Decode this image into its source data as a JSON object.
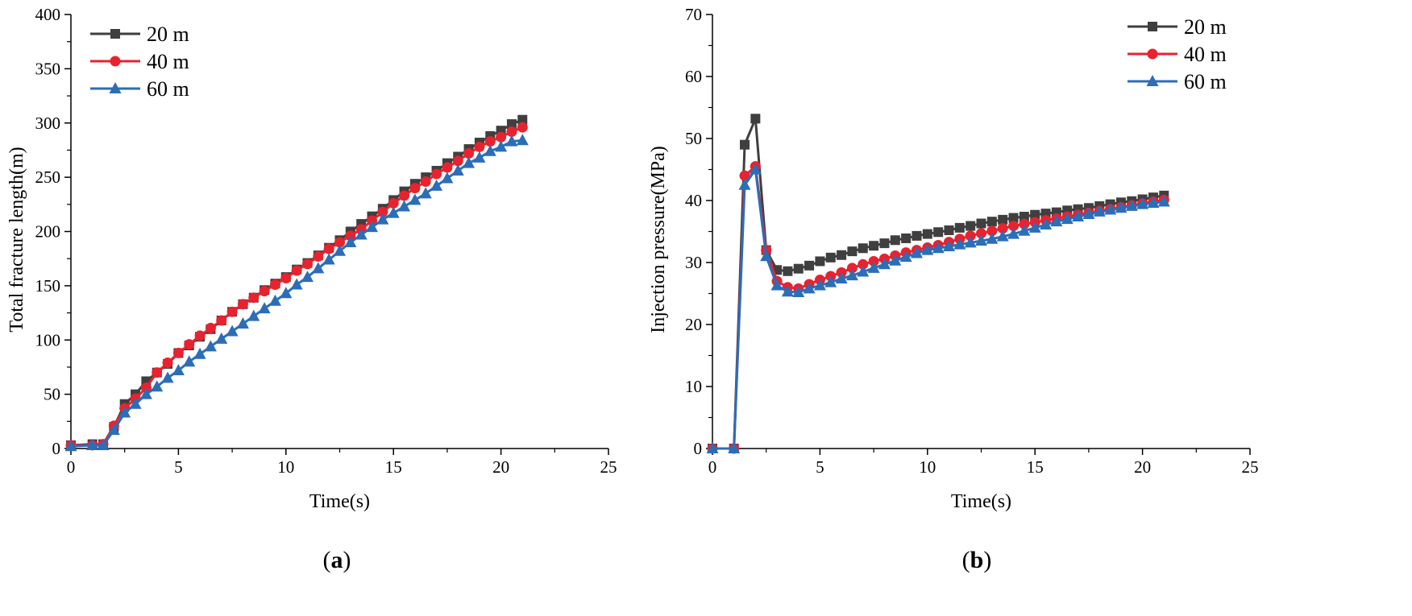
{
  "chart_data": [
    {
      "type": "line",
      "panel_label": "a",
      "title": "",
      "xlabel": "Time(s)",
      "ylabel": "Total fracture length(m)",
      "xlim": [
        0,
        25
      ],
      "ylim": [
        0,
        400
      ],
      "xticks": [
        0,
        5,
        10,
        15,
        20,
        25
      ],
      "yticks": [
        0,
        50,
        100,
        150,
        200,
        250,
        300,
        350,
        400
      ],
      "grid": false,
      "legend_position": "top-left",
      "x": [
        0,
        1,
        1.5,
        2,
        2.5,
        3,
        3.5,
        4,
        4.5,
        5,
        5.5,
        6,
        6.5,
        7,
        7.5,
        8,
        8.5,
        9,
        9.5,
        10,
        10.5,
        11,
        11.5,
        12,
        12.5,
        13,
        13.5,
        14,
        14.5,
        15,
        15.5,
        16,
        16.5,
        17,
        17.5,
        18,
        18.5,
        19,
        19.5,
        20,
        20.5,
        21
      ],
      "series": [
        {
          "name": "20 m",
          "color": "#3f3f3f",
          "marker": "square",
          "values": [
            3,
            4,
            4,
            20,
            41,
            50,
            62,
            70,
            78,
            88,
            95,
            103,
            110,
            118,
            126,
            133,
            139,
            146,
            152,
            158,
            165,
            171,
            178,
            185,
            192,
            200,
            207,
            214,
            221,
            229,
            237,
            244,
            250,
            256,
            263,
            269,
            276,
            282,
            288,
            293,
            299,
            303
          ]
        },
        {
          "name": "40 m",
          "color": "#e8222f",
          "marker": "circle",
          "values": [
            3,
            3,
            4,
            21,
            37,
            46,
            56,
            70,
            79,
            88,
            96,
            104,
            111,
            118,
            126,
            133,
            139,
            145,
            151,
            157,
            164,
            170,
            177,
            184,
            190,
            196,
            202,
            210,
            218,
            226,
            233,
            240,
            246,
            253,
            259,
            265,
            272,
            278,
            283,
            287,
            292,
            296
          ]
        },
        {
          "name": "60 m",
          "color": "#2c6db8",
          "marker": "triangle",
          "values": [
            2,
            3,
            3,
            17,
            33,
            41,
            50,
            57,
            65,
            72,
            80,
            87,
            94,
            101,
            108,
            115,
            122,
            129,
            136,
            143,
            151,
            158,
            166,
            174,
            182,
            190,
            197,
            204,
            211,
            217,
            223,
            229,
            235,
            242,
            249,
            256,
            263,
            268,
            274,
            278,
            283,
            284
          ]
        }
      ]
    },
    {
      "type": "line",
      "panel_label": "b",
      "title": "",
      "xlabel": "Time(s)",
      "ylabel": "Injection pressure(MPa)",
      "xlim": [
        0,
        25
      ],
      "ylim": [
        0,
        70
      ],
      "xticks": [
        0,
        5,
        10,
        15,
        20,
        25
      ],
      "yticks": [
        0,
        10,
        20,
        30,
        40,
        50,
        60,
        70
      ],
      "grid": false,
      "legend_position": "top-right",
      "x": [
        0,
        1,
        1.5,
        2,
        2.5,
        3,
        3.5,
        4,
        4.5,
        5,
        5.5,
        6,
        6.5,
        7,
        7.5,
        8,
        8.5,
        9,
        9.5,
        10,
        10.5,
        11,
        11.5,
        12,
        12.5,
        13,
        13.5,
        14,
        14.5,
        15,
        15.5,
        16,
        16.5,
        17,
        17.5,
        18,
        18.5,
        19,
        19.5,
        20,
        20.5,
        21
      ],
      "series": [
        {
          "name": "20 m",
          "color": "#3f3f3f",
          "marker": "square",
          "values": [
            0,
            0,
            49,
            53.2,
            32,
            28.8,
            28.6,
            29,
            29.5,
            30.2,
            30.8,
            31.2,
            31.8,
            32.3,
            32.7,
            33.1,
            33.6,
            33.9,
            34.3,
            34.6,
            34.9,
            35.2,
            35.6,
            35.9,
            36.3,
            36.6,
            36.9,
            37.2,
            37.4,
            37.7,
            37.9,
            38.1,
            38.4,
            38.6,
            38.8,
            39.1,
            39.4,
            39.7,
            39.9,
            40.2,
            40.5,
            40.8
          ]
        },
        {
          "name": "40 m",
          "color": "#e8222f",
          "marker": "circle",
          "values": [
            0,
            0,
            44,
            45.5,
            32,
            27,
            26,
            25.8,
            26.5,
            27.2,
            27.8,
            28.4,
            29.1,
            29.7,
            30.2,
            30.6,
            31.1,
            31.6,
            32,
            32.4,
            32.8,
            33.3,
            33.8,
            34.3,
            34.7,
            35.1,
            35.5,
            35.9,
            36.2,
            36.5,
            36.8,
            37.1,
            37.4,
            37.7,
            38,
            38.3,
            38.6,
            38.9,
            39.2,
            39.5,
            39.8,
            40.1
          ]
        },
        {
          "name": "60 m",
          "color": "#2c6db8",
          "marker": "triangle",
          "values": [
            0,
            0,
            42.5,
            45,
            31,
            26.3,
            25.3,
            25.2,
            25.8,
            26.3,
            26.8,
            27.4,
            27.9,
            28.5,
            29.1,
            29.7,
            30.3,
            30.9,
            31.5,
            32,
            32.3,
            32.6,
            32.9,
            33.2,
            33.5,
            33.8,
            34.2,
            34.6,
            35.1,
            35.6,
            36.1,
            36.6,
            37,
            37.4,
            37.8,
            38.2,
            38.5,
            38.8,
            39.1,
            39.4,
            39.6,
            39.8
          ]
        }
      ]
    }
  ]
}
